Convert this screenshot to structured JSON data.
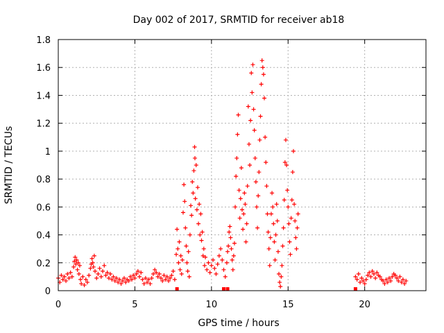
{
  "chart_data": {
    "type": "scatter",
    "title": "Day 002 of 2017, SRMTID for receiver ab18",
    "xlabel": "GPS time / hours",
    "ylabel": "SRMTID / TECUs",
    "xlim": [
      0,
      24
    ],
    "ylim": [
      0,
      1.8
    ],
    "x_ticks": [
      0,
      5,
      10,
      15,
      20
    ],
    "y_ticks": [
      0,
      0.2,
      0.4,
      0.6,
      0.8,
      1,
      1.2,
      1.4,
      1.6,
      1.8
    ],
    "x_tick_labels": [
      "0",
      "5",
      "10",
      "15",
      "20"
    ],
    "y_tick_labels": [
      "0",
      "0.2",
      "0.4",
      "0.6",
      "0.8",
      "1",
      "1.2",
      "1.4",
      "1.6",
      "1.8"
    ],
    "grid": true,
    "marker": "plus",
    "colors": {
      "series": "#ff0000",
      "grid": "#b0b0b0",
      "axis": "#000000",
      "background": "#ffffff"
    },
    "series": [
      {
        "name": "SRMTID",
        "points": [
          [
            0.0,
            0.09
          ],
          [
            0.1,
            0.06
          ],
          [
            0.2,
            0.11
          ],
          [
            0.3,
            0.08
          ],
          [
            0.4,
            0.1
          ],
          [
            0.5,
            0.07
          ],
          [
            0.6,
            0.12
          ],
          [
            0.7,
            0.09
          ],
          [
            0.8,
            0.13
          ],
          [
            0.9,
            0.1
          ],
          [
            1.0,
            0.17
          ],
          [
            1.05,
            0.21
          ],
          [
            1.1,
            0.24
          ],
          [
            1.15,
            0.19
          ],
          [
            1.2,
            0.22
          ],
          [
            1.25,
            0.15
          ],
          [
            1.3,
            0.2
          ],
          [
            1.35,
            0.12
          ],
          [
            1.4,
            0.18
          ],
          [
            1.45,
            0.08
          ],
          [
            1.5,
            0.05
          ],
          [
            1.6,
            0.1
          ],
          [
            1.7,
            0.04
          ],
          [
            1.8,
            0.08
          ],
          [
            1.9,
            0.06
          ],
          [
            2.0,
            0.11
          ],
          [
            2.1,
            0.16
          ],
          [
            2.15,
            0.19
          ],
          [
            2.2,
            0.23
          ],
          [
            2.25,
            0.2
          ],
          [
            2.3,
            0.17
          ],
          [
            2.35,
            0.25
          ],
          [
            2.4,
            0.14
          ],
          [
            2.5,
            0.09
          ],
          [
            2.6,
            0.12
          ],
          [
            2.7,
            0.16
          ],
          [
            2.8,
            0.1
          ],
          [
            2.9,
            0.14
          ],
          [
            3.0,
            0.18
          ],
          [
            3.1,
            0.11
          ],
          [
            3.2,
            0.13
          ],
          [
            3.3,
            0.09
          ],
          [
            3.4,
            0.12
          ],
          [
            3.5,
            0.08
          ],
          [
            3.6,
            0.1
          ],
          [
            3.7,
            0.07
          ],
          [
            3.8,
            0.09
          ],
          [
            3.9,
            0.06
          ],
          [
            4.0,
            0.08
          ],
          [
            4.1,
            0.05
          ],
          [
            4.2,
            0.07
          ],
          [
            4.3,
            0.09
          ],
          [
            4.4,
            0.06
          ],
          [
            4.5,
            0.08
          ],
          [
            4.6,
            0.07
          ],
          [
            4.7,
            0.1
          ],
          [
            4.8,
            0.08
          ],
          [
            4.9,
            0.11
          ],
          [
            5.0,
            0.09
          ],
          [
            5.1,
            0.12
          ],
          [
            5.2,
            0.14
          ],
          [
            5.3,
            0.1
          ],
          [
            5.4,
            0.13
          ],
          [
            5.5,
            0.08
          ],
          [
            5.6,
            0.05
          ],
          [
            5.7,
            0.09
          ],
          [
            5.8,
            0.06
          ],
          [
            5.9,
            0.08
          ],
          [
            6.0,
            0.05
          ],
          [
            6.1,
            0.09
          ],
          [
            6.2,
            0.12
          ],
          [
            6.3,
            0.15
          ],
          [
            6.4,
            0.13
          ],
          [
            6.5,
            0.1
          ],
          [
            6.6,
            0.12
          ],
          [
            6.7,
            0.09
          ],
          [
            6.8,
            0.07
          ],
          [
            6.9,
            0.11
          ],
          [
            7.0,
            0.08
          ],
          [
            7.1,
            0.1
          ],
          [
            7.2,
            0.07
          ],
          [
            7.3,
            0.09
          ],
          [
            7.4,
            0.11
          ],
          [
            7.5,
            0.14
          ],
          [
            7.6,
            0.08
          ],
          [
            7.7,
            0.26
          ],
          [
            7.75,
            0.44
          ],
          [
            7.8,
            0.3
          ],
          [
            7.85,
            0.2
          ],
          [
            7.9,
            0.35
          ],
          [
            7.95,
            0.15
          ],
          [
            8.0,
            0.25
          ],
          [
            8.05,
            0.12
          ],
          [
            8.1,
            0.22
          ],
          [
            8.15,
            0.56
          ],
          [
            8.2,
            0.76
          ],
          [
            8.25,
            0.64
          ],
          [
            8.3,
            0.45
          ],
          [
            8.35,
            0.32
          ],
          [
            8.4,
            0.2
          ],
          [
            8.45,
            0.14
          ],
          [
            8.5,
            0.28
          ],
          [
            8.55,
            0.1
          ],
          [
            8.6,
            0.4
          ],
          [
            8.65,
            0.61
          ],
          [
            8.7,
            0.54
          ],
          [
            8.75,
            0.78
          ],
          [
            8.8,
            0.7
          ],
          [
            8.85,
            0.86
          ],
          [
            8.9,
            1.03
          ],
          [
            8.92,
            0.95
          ],
          [
            8.95,
            0.66
          ],
          [
            9.0,
            0.9
          ],
          [
            9.05,
            0.58
          ],
          [
            9.1,
            0.74
          ],
          [
            9.15,
            0.48
          ],
          [
            9.2,
            0.62
          ],
          [
            9.25,
            0.4
          ],
          [
            9.3,
            0.55
          ],
          [
            9.35,
            0.36
          ],
          [
            9.4,
            0.42
          ],
          [
            9.45,
            0.25
          ],
          [
            9.5,
            0.3
          ],
          [
            9.55,
            0.18
          ],
          [
            9.6,
            0.24
          ],
          [
            9.7,
            0.15
          ],
          [
            9.8,
            0.2
          ],
          [
            9.9,
            0.13
          ],
          [
            10.0,
            0.18
          ],
          [
            10.1,
            0.22
          ],
          [
            10.2,
            0.16
          ],
          [
            10.3,
            0.12
          ],
          [
            10.4,
            0.19
          ],
          [
            10.5,
            0.25
          ],
          [
            10.6,
            0.3
          ],
          [
            10.7,
            0.22
          ],
          [
            10.8,
            0.15
          ],
          [
            10.9,
            0.1
          ],
          [
            11.0,
            0.2
          ],
          [
            11.05,
            0.28
          ],
          [
            11.1,
            0.32
          ],
          [
            11.15,
            0.42
          ],
          [
            11.2,
            0.46
          ],
          [
            11.25,
            0.38
          ],
          [
            11.3,
            0.3
          ],
          [
            11.35,
            0.22
          ],
          [
            11.4,
            0.15
          ],
          [
            11.45,
            0.25
          ],
          [
            11.5,
            0.34
          ],
          [
            11.55,
            0.6
          ],
          [
            11.6,
            0.82
          ],
          [
            11.65,
            0.95
          ],
          [
            11.7,
            1.12
          ],
          [
            11.75,
            1.26
          ],
          [
            11.8,
            0.72
          ],
          [
            11.85,
            0.52
          ],
          [
            11.9,
            0.66
          ],
          [
            11.95,
            0.88
          ],
          [
            12.0,
            0.58
          ],
          [
            12.05,
            0.44
          ],
          [
            12.1,
            0.55
          ],
          [
            12.15,
            0.7
          ],
          [
            12.2,
            0.62
          ],
          [
            12.25,
            0.35
          ],
          [
            12.3,
            0.48
          ],
          [
            12.35,
            0.75
          ],
          [
            12.4,
            1.32
          ],
          [
            12.45,
            1.05
          ],
          [
            12.5,
            0.9
          ],
          [
            12.55,
            1.22
          ],
          [
            12.6,
            1.56
          ],
          [
            12.65,
            1.42
          ],
          [
            12.7,
            1.62
          ],
          [
            12.75,
            1.3
          ],
          [
            12.8,
            1.15
          ],
          [
            12.85,
            0.95
          ],
          [
            12.9,
            0.78
          ],
          [
            12.95,
            0.6
          ],
          [
            13.0,
            0.45
          ],
          [
            13.05,
            0.68
          ],
          [
            13.1,
            0.85
          ],
          [
            13.15,
            1.08
          ],
          [
            13.2,
            1.25
          ],
          [
            13.25,
            1.48
          ],
          [
            13.3,
            1.65
          ],
          [
            13.35,
            1.6
          ],
          [
            13.4,
            1.55
          ],
          [
            13.45,
            1.38
          ],
          [
            13.5,
            1.1
          ],
          [
            13.55,
            0.92
          ],
          [
            13.6,
            0.75
          ],
          [
            13.65,
            0.55
          ],
          [
            13.7,
            0.42
          ],
          [
            13.75,
            0.3
          ],
          [
            13.8,
            0.18
          ],
          [
            13.85,
            0.38
          ],
          [
            13.9,
            0.55
          ],
          [
            13.95,
            0.7
          ],
          [
            14.0,
            0.6
          ],
          [
            14.05,
            0.48
          ],
          [
            14.1,
            0.35
          ],
          [
            14.15,
            0.22
          ],
          [
            14.2,
            0.4
          ],
          [
            14.25,
            0.62
          ],
          [
            14.3,
            0.5
          ],
          [
            14.35,
            0.28
          ],
          [
            14.4,
            0.12
          ],
          [
            14.45,
            0.06
          ],
          [
            14.5,
            0.03
          ],
          [
            14.55,
            0.1
          ],
          [
            14.6,
            0.18
          ],
          [
            14.65,
            0.32
          ],
          [
            14.7,
            0.45
          ],
          [
            14.75,
            0.65
          ],
          [
            14.8,
            0.92
          ],
          [
            14.85,
            1.08
          ],
          [
            14.9,
            0.9
          ],
          [
            14.95,
            0.72
          ],
          [
            15.0,
            0.6
          ],
          [
            15.05,
            0.48
          ],
          [
            15.1,
            0.35
          ],
          [
            15.15,
            0.26
          ],
          [
            15.2,
            0.52
          ],
          [
            15.25,
            0.65
          ],
          [
            15.3,
            0.85
          ],
          [
            15.35,
            1.0
          ],
          [
            15.4,
            0.62
          ],
          [
            15.45,
            0.5
          ],
          [
            15.5,
            0.38
          ],
          [
            15.55,
            0.3
          ],
          [
            15.6,
            0.45
          ],
          [
            15.65,
            0.55
          ],
          [
            19.4,
            0.1
          ],
          [
            19.5,
            0.08
          ],
          [
            19.6,
            0.12
          ],
          [
            19.7,
            0.06
          ],
          [
            19.8,
            0.09
          ],
          [
            19.9,
            0.07
          ],
          [
            20.0,
            0.05
          ],
          [
            20.1,
            0.08
          ],
          [
            20.2,
            0.11
          ],
          [
            20.3,
            0.13
          ],
          [
            20.4,
            0.1
          ],
          [
            20.5,
            0.14
          ],
          [
            20.6,
            0.12
          ],
          [
            20.7,
            0.09
          ],
          [
            20.8,
            0.13
          ],
          [
            20.9,
            0.11
          ],
          [
            21.0,
            0.1
          ],
          [
            21.1,
            0.08
          ],
          [
            21.2,
            0.07
          ],
          [
            21.3,
            0.05
          ],
          [
            21.4,
            0.08
          ],
          [
            21.5,
            0.06
          ],
          [
            21.6,
            0.09
          ],
          [
            21.7,
            0.07
          ],
          [
            21.8,
            0.1
          ],
          [
            21.9,
            0.12
          ],
          [
            22.0,
            0.11
          ],
          [
            22.1,
            0.09
          ],
          [
            22.2,
            0.07
          ],
          [
            22.3,
            0.1
          ],
          [
            22.4,
            0.06
          ],
          [
            22.5,
            0.08
          ],
          [
            22.6,
            0.05
          ],
          [
            22.7,
            0.07
          ]
        ],
        "zero_markers": [
          7.75,
          10.8,
          11.05,
          19.4
        ]
      }
    ]
  }
}
